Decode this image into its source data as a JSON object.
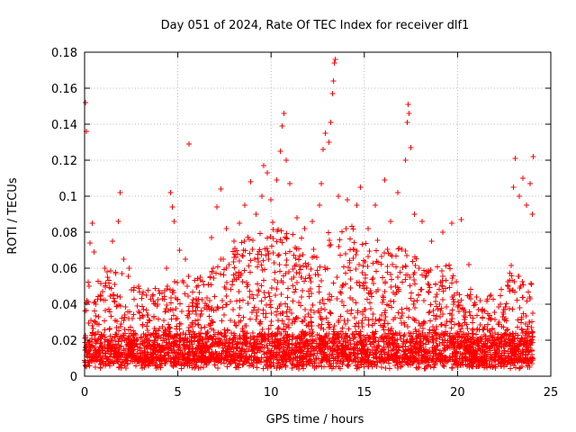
{
  "chart_data": {
    "type": "scatter",
    "title": "Day 051 of 2024, Rate Of TEC Index for receiver dlf1",
    "xlabel": "GPS time / hours",
    "ylabel": "ROTI / TECUs",
    "xlim": [
      0,
      25
    ],
    "ylim": [
      0,
      0.18
    ],
    "x_ticks": [
      0,
      5,
      10,
      15,
      20,
      25
    ],
    "x_tick_labels": [
      "0",
      "5",
      "10",
      "15",
      "20",
      "25"
    ],
    "y_ticks": [
      0,
      0.02,
      0.04,
      0.06,
      0.08,
      0.1,
      0.12,
      0.14,
      0.16,
      0.18
    ],
    "y_tick_labels": [
      "0",
      "0.02",
      "0.04",
      "0.06",
      "0.08",
      "0.1",
      "0.12",
      "0.14",
      "0.16",
      "0.18"
    ],
    "grid": true,
    "marker": "plus",
    "color": "#ff0000",
    "series": [
      {
        "name": "ROTI",
        "points": [
          [
            0.05,
            0.152
          ],
          [
            0.1,
            0.136
          ],
          [
            0.3,
            0.074
          ],
          [
            0.4,
            0.085
          ],
          [
            0.5,
            0.069
          ],
          [
            0.6,
            0.04
          ],
          [
            1.2,
            0.058
          ],
          [
            1.5,
            0.075
          ],
          [
            1.8,
            0.086
          ],
          [
            1.9,
            0.102
          ],
          [
            2.1,
            0.065
          ],
          [
            2.4,
            0.06
          ],
          [
            2.9,
            0.05
          ],
          [
            3.3,
            0.045
          ],
          [
            3.8,
            0.04
          ],
          [
            4.4,
            0.06
          ],
          [
            4.6,
            0.102
          ],
          [
            4.7,
            0.094
          ],
          [
            4.8,
            0.086
          ],
          [
            5.1,
            0.07
          ],
          [
            5.4,
            0.065
          ],
          [
            5.6,
            0.129
          ],
          [
            6.2,
            0.055
          ],
          [
            6.8,
            0.077
          ],
          [
            7.1,
            0.094
          ],
          [
            7.3,
            0.104
          ],
          [
            7.6,
            0.082
          ],
          [
            8.0,
            0.075
          ],
          [
            8.3,
            0.085
          ],
          [
            8.6,
            0.095
          ],
          [
            8.9,
            0.108
          ],
          [
            9.2,
            0.09
          ],
          [
            9.5,
            0.1
          ],
          [
            9.6,
            0.117
          ],
          [
            9.8,
            0.113
          ],
          [
            10.0,
            0.098
          ],
          [
            10.3,
            0.109
          ],
          [
            10.5,
            0.125
          ],
          [
            10.6,
            0.139
          ],
          [
            10.7,
            0.146
          ],
          [
            10.8,
            0.12
          ],
          [
            11.0,
            0.107
          ],
          [
            11.4,
            0.088
          ],
          [
            11.8,
            0.082
          ],
          [
            12.2,
            0.086
          ],
          [
            12.6,
            0.095
          ],
          [
            12.7,
            0.107
          ],
          [
            12.8,
            0.126
          ],
          [
            12.9,
            0.135
          ],
          [
            13.1,
            0.13
          ],
          [
            13.2,
            0.141
          ],
          [
            13.3,
            0.157
          ],
          [
            13.35,
            0.164
          ],
          [
            13.4,
            0.174
          ],
          [
            13.45,
            0.176
          ],
          [
            13.6,
            0.1
          ],
          [
            14.1,
            0.098
          ],
          [
            14.6,
            0.095
          ],
          [
            14.8,
            0.105
          ],
          [
            15.2,
            0.082
          ],
          [
            15.6,
            0.095
          ],
          [
            16.1,
            0.109
          ],
          [
            16.4,
            0.086
          ],
          [
            16.8,
            0.102
          ],
          [
            17.2,
            0.12
          ],
          [
            17.3,
            0.141
          ],
          [
            17.35,
            0.151
          ],
          [
            17.4,
            0.146
          ],
          [
            17.5,
            0.127
          ],
          [
            17.7,
            0.09
          ],
          [
            18.1,
            0.086
          ],
          [
            18.6,
            0.075
          ],
          [
            19.2,
            0.08
          ],
          [
            19.7,
            0.085
          ],
          [
            20.2,
            0.087
          ],
          [
            20.6,
            0.062
          ],
          [
            21.2,
            0.042
          ],
          [
            21.8,
            0.045
          ],
          [
            22.3,
            0.04
          ],
          [
            22.7,
            0.05
          ],
          [
            23.0,
            0.105
          ],
          [
            23.1,
            0.121
          ],
          [
            23.3,
            0.1
          ],
          [
            23.5,
            0.11
          ],
          [
            23.7,
            0.095
          ],
          [
            23.9,
            0.107
          ],
          [
            24.0,
            0.09
          ],
          [
            24.05,
            0.122
          ]
        ],
        "density_profile": {
          "hours": [
            0,
            1,
            2,
            3,
            4,
            5,
            6,
            7,
            8,
            9,
            10,
            11,
            12,
            13,
            14,
            15,
            16,
            17,
            18,
            19,
            20,
            21,
            22,
            23,
            24
          ],
          "typical_max": [
            0.045,
            0.055,
            0.06,
            0.05,
            0.045,
            0.05,
            0.05,
            0.06,
            0.07,
            0.075,
            0.08,
            0.08,
            0.07,
            0.075,
            0.08,
            0.075,
            0.07,
            0.07,
            0.06,
            0.06,
            0.055,
            0.04,
            0.04,
            0.06,
            0.05
          ],
          "baseline_min": 0.004
        }
      }
    ]
  }
}
